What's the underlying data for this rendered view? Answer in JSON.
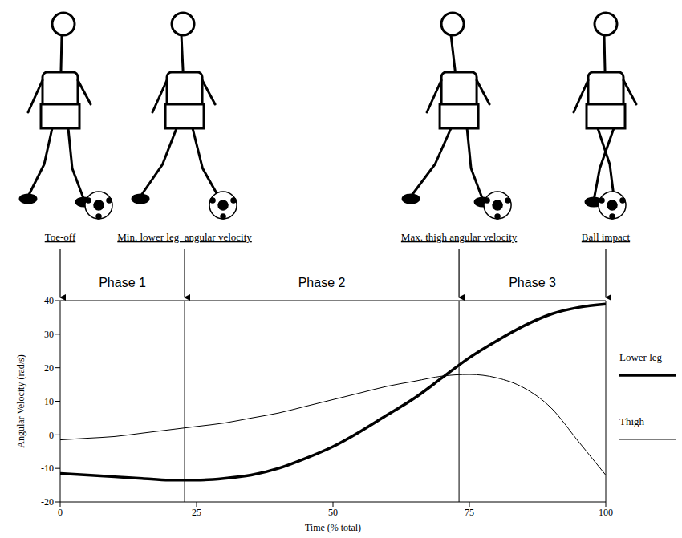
{
  "chart_data": {
    "type": "line",
    "x_label": "Time (% total)",
    "y_label": "Angular Velocity (rad/s)",
    "x": [
      0,
      5,
      10,
      15,
      20,
      25,
      30,
      35,
      40,
      45,
      50,
      55,
      60,
      65,
      70,
      75,
      80,
      85,
      90,
      95,
      100
    ],
    "series": [
      {
        "name": "Lower leg",
        "color": "#000000",
        "line_style": "thick",
        "values": [
          -11.5,
          -12,
          -12.5,
          -13,
          -13.5,
          -13.5,
          -13,
          -12,
          -10,
          -7,
          -3.5,
          1,
          6,
          11,
          17,
          23,
          28,
          32.5,
          36,
          38,
          39
        ]
      },
      {
        "name": "Thigh",
        "color": "#000000",
        "line_style": "thin",
        "values": [
          -1.5,
          -1,
          -0.5,
          0.5,
          1.5,
          2.5,
          3.5,
          5,
          6.5,
          8.5,
          10.5,
          12.5,
          14.5,
          16,
          17.5,
          18,
          17,
          14,
          8,
          -2,
          -12
        ]
      }
    ],
    "xlim": [
      0,
      100
    ],
    "ylim": [
      -20,
      40
    ],
    "xticks": [
      0,
      25,
      50,
      75,
      100
    ],
    "yticks": [
      -20,
      -10,
      0,
      10,
      20,
      30,
      40
    ],
    "events": [
      {
        "x": 0,
        "label": "Toe-off"
      },
      {
        "x": 22.8,
        "label": "Min. lower leg  angular velocity"
      },
      {
        "x": 73.1,
        "label": "Max. thigh angular velocity"
      },
      {
        "x": 100,
        "label": "Ball impact"
      }
    ],
    "phases": [
      "Phase 1",
      "Phase 2",
      "Phase 3"
    ],
    "legend": "right",
    "grid": false
  }
}
